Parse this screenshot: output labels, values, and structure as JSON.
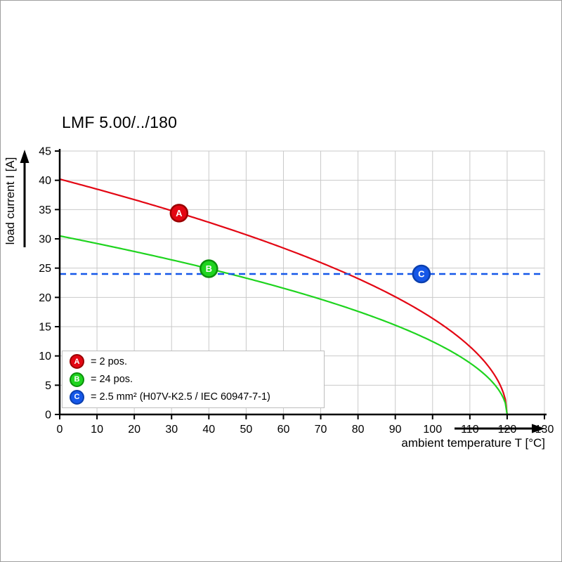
{
  "chart_data": {
    "type": "line",
    "title": "LMF 5.00/../180",
    "xlabel": "ambient temperature T [°C]",
    "ylabel": "load current I [A]",
    "xlim": [
      0,
      130
    ],
    "ylim": [
      0,
      45
    ],
    "xticks": [
      0,
      10,
      20,
      30,
      40,
      50,
      60,
      70,
      80,
      90,
      100,
      110,
      120,
      130
    ],
    "yticks": [
      0,
      5,
      10,
      15,
      20,
      25,
      30,
      35,
      40,
      45
    ],
    "grid": true,
    "legend_position": "bottom-left",
    "series": [
      {
        "name": "A",
        "legend": "= 2 pos.",
        "color": "#e30613",
        "ring": "#9a0000",
        "style": "solid",
        "curve": {
          "I0": 40.2,
          "T_end": 120
        },
        "marker": {
          "x": 32,
          "y": 34.4
        },
        "x": [
          0,
          10,
          20,
          30,
          40,
          50,
          60,
          70,
          80,
          90,
          100,
          110,
          120
        ],
        "values": [
          40.2,
          38.5,
          36.7,
          34.8,
          32.8,
          30.7,
          28.4,
          26.0,
          23.2,
          20.1,
          16.4,
          11.6,
          0
        ]
      },
      {
        "name": "B",
        "legend": "= 24 pos.",
        "color": "#1fd41f",
        "ring": "#0b8f0b",
        "style": "solid",
        "curve": {
          "I0": 30.5,
          "T_end": 120
        },
        "marker": {
          "x": 40,
          "y": 24.9
        },
        "x": [
          0,
          10,
          20,
          30,
          40,
          50,
          60,
          70,
          80,
          90,
          100,
          110,
          120
        ],
        "values": [
          30.5,
          29.2,
          27.8,
          26.4,
          24.9,
          23.3,
          21.6,
          19.7,
          17.6,
          15.3,
          12.5,
          8.8,
          0
        ]
      },
      {
        "name": "C",
        "legend": "= 2.5 mm² (H07V-K2.5 / IEC 60947-7-1)",
        "color": "#1557e8",
        "ring": "#0b3fae",
        "style": "dashed",
        "hline": 24,
        "dash": [
          9,
          6
        ],
        "marker": {
          "x": 97,
          "y": 24
        }
      }
    ]
  }
}
